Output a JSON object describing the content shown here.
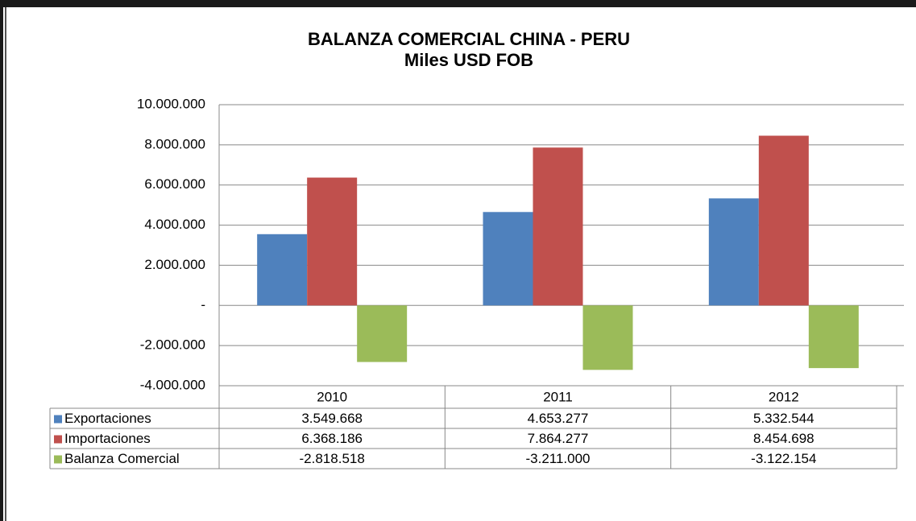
{
  "chart_data": {
    "type": "bar",
    "title": "BALANZA COMERCIAL CHINA - PERU",
    "subtitle": "Miles USD FOB",
    "categories": [
      "2010",
      "2011",
      "2012"
    ],
    "series": [
      {
        "name": "Exportaciones",
        "color": "#4f81bd",
        "values": [
          3549668,
          4653277,
          5332544
        ],
        "value_labels": [
          "3.549.668",
          "4.653.277",
          "5.332.544"
        ]
      },
      {
        "name": "Importaciones",
        "color": "#c0504d",
        "values": [
          6368186,
          7864277,
          8454698
        ],
        "value_labels": [
          "6.368.186",
          "7.864.277",
          "8.454.698"
        ]
      },
      {
        "name": "Balanza Comercial",
        "color": "#9bbb59",
        "values": [
          -2818518,
          -3211000,
          -3122154
        ],
        "value_labels": [
          "-2.818.518",
          "-3.211.000",
          "-3.122.154"
        ]
      }
    ],
    "ylim": [
      -4000000,
      10000000
    ],
    "yticks": [
      {
        "value": -4000000,
        "label": "-4.000.000"
      },
      {
        "value": -2000000,
        "label": "-2.000.000"
      },
      {
        "value": 0,
        "label": "-"
      },
      {
        "value": 2000000,
        "label": "2.000.000"
      },
      {
        "value": 4000000,
        "label": "4.000.000"
      },
      {
        "value": 6000000,
        "label": "6.000.000"
      },
      {
        "value": 8000000,
        "label": "8.000.000"
      },
      {
        "value": 10000000,
        "label": "10.000.000"
      }
    ],
    "grid": true,
    "legend": "table"
  }
}
